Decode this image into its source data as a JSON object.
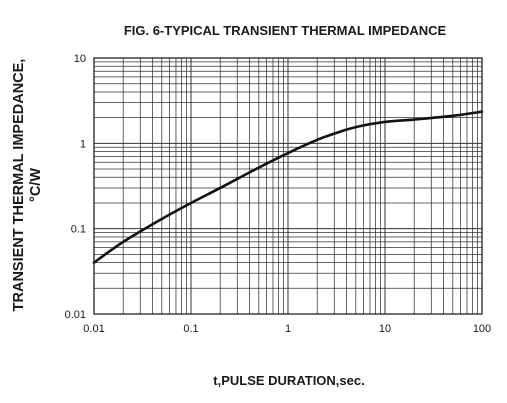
{
  "chart_data": {
    "type": "line",
    "title": "FIG. 6-TYPICAL TRANSIENT THERMAL IMPEDANCE",
    "xlabel": "t,PULSE DURATION,sec.",
    "ylabel_line1": "TRANSIENT THERMAL IMPEDANCE,",
    "ylabel_line2": "°C/W",
    "x_scale": "log",
    "y_scale": "log",
    "xlim": [
      0.01,
      100
    ],
    "ylim": [
      0.01,
      10
    ],
    "x_ticks": [
      {
        "value": 0.01,
        "label": "0.01"
      },
      {
        "value": 0.1,
        "label": "0.1"
      },
      {
        "value": 1,
        "label": "1"
      },
      {
        "value": 10,
        "label": "10"
      },
      {
        "value": 100,
        "label": "100"
      }
    ],
    "y_ticks": [
      {
        "value": 0.01,
        "label": "0.01"
      },
      {
        "value": 0.1,
        "label": "0.1"
      },
      {
        "value": 1,
        "label": "1"
      },
      {
        "value": 10,
        "label": "10"
      }
    ],
    "grid": true,
    "series": [
      {
        "color": "#111111",
        "x": [
          0.01,
          0.02,
          0.05,
          0.1,
          0.2,
          0.5,
          1,
          2,
          3,
          5,
          10,
          20,
          50,
          100
        ],
        "y": [
          0.04,
          0.07,
          0.13,
          0.2,
          0.3,
          0.52,
          0.77,
          1.1,
          1.3,
          1.55,
          1.78,
          1.9,
          2.1,
          2.35
        ]
      }
    ]
  }
}
